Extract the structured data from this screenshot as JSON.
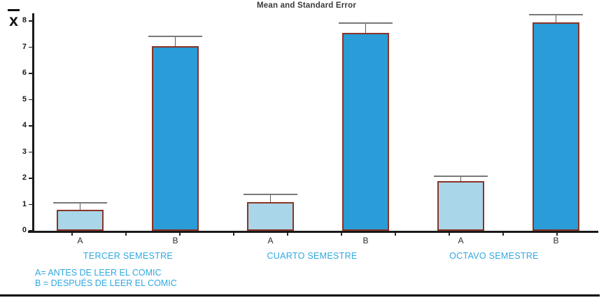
{
  "chart_data": {
    "type": "bar",
    "title": "Mean and Standard Error",
    "ylabel": "x̄",
    "ylabel_glyph": "x",
    "xlabel": "",
    "ylim": [
      0,
      8
    ],
    "y_ticks": [
      0,
      1,
      2,
      3,
      4,
      5,
      6,
      7,
      8
    ],
    "grid": false,
    "legend_position": "bottom-left",
    "groups": [
      {
        "label": "TERCER SEMESTRE",
        "bars": [
          {
            "category": "A",
            "mean": 0.8,
            "std_error": 0.3
          },
          {
            "category": "B",
            "mean": 7.05,
            "std_error": 0.4
          }
        ]
      },
      {
        "label": "CUARTO SEMESTRE",
        "bars": [
          {
            "category": "A",
            "mean": 1.1,
            "std_error": 0.32
          },
          {
            "category": "B",
            "mean": 7.55,
            "std_error": 0.4
          }
        ]
      },
      {
        "label": "OCTAVO SEMESTRE",
        "bars": [
          {
            "category": "A",
            "mean": 1.9,
            "std_error": 0.2
          },
          {
            "category": "B",
            "mean": 7.95,
            "std_error": 0.33
          }
        ]
      }
    ],
    "legend": [
      "A= ANTES DE LEER EL COMIC",
      "B = DESPUÉS DE LEER EL COMIC"
    ],
    "colors": {
      "bar_a_fill": "#A9D6E8",
      "bar_b_fill": "#2A9CD7",
      "bar_border": "#8B3426",
      "error_bar_cap": "#787878",
      "error_bar_stem": "#5a5a5a",
      "axis": "#1a1a1a",
      "group_label_text": "#2FA8E1",
      "legend_text": "#2FA8E1",
      "title_text": "#3a3a3a"
    }
  }
}
